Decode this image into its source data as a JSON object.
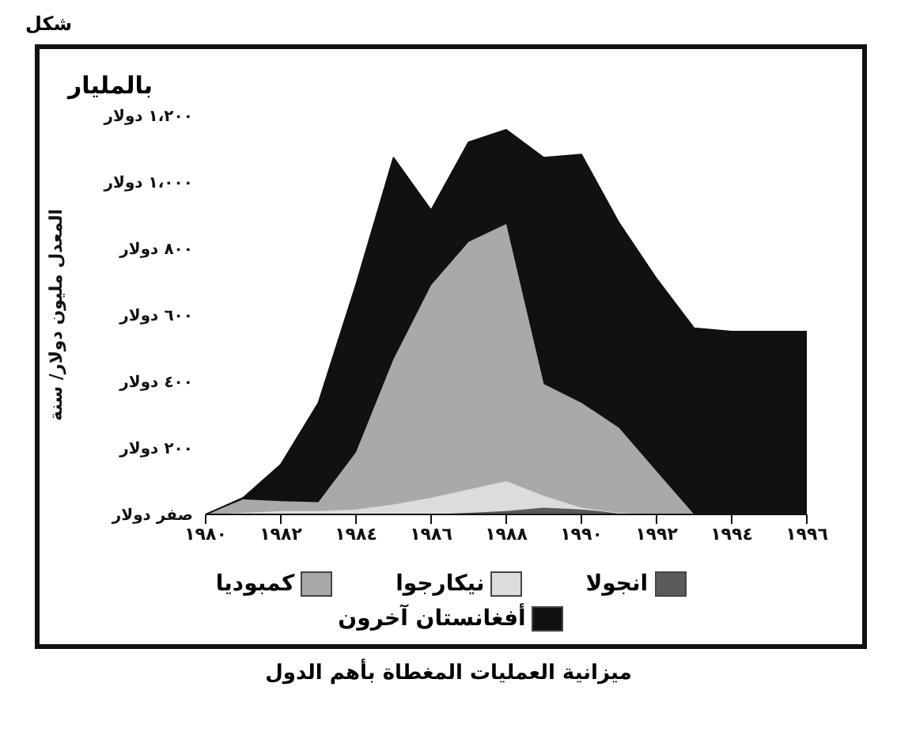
{
  "chart_data": {
    "type": "area",
    "stacked": true,
    "title": "ميزانية العمليات المغطاة بأهم الدول",
    "ylabel": "المعدل مليون دولار/ سنة",
    "annotations": [
      "شكل",
      "بالمليار"
    ],
    "x": [
      1980,
      1981,
      1982,
      1983,
      1984,
      1985,
      1986,
      1987,
      1988,
      1989,
      1990,
      1991,
      1992,
      1993,
      1994,
      1995,
      1996
    ],
    "series": [
      {
        "name": "انجولا",
        "color": "#5a5a5a",
        "values": [
          0,
          0,
          0,
          0,
          0,
          0,
          0,
          5,
          10,
          20,
          15,
          5,
          0,
          0,
          0,
          0,
          0
        ]
      },
      {
        "name": "نيكارجوا",
        "color": "#dcdcdc",
        "values": [
          0,
          5,
          10,
          10,
          15,
          30,
          50,
          70,
          90,
          36,
          5,
          0,
          0,
          0,
          0,
          0,
          0
        ]
      },
      {
        "name": "كمبوديا",
        "color": "#a9a9a9",
        "values": [
          0,
          40,
          30,
          27,
          172,
          437,
          640,
          745,
          774,
          336,
          316,
          256,
          130,
          0,
          0,
          0,
          0
        ]
      },
      {
        "name": "أفغانستان آخرون",
        "color": "#111111",
        "values": [
          0,
          5,
          110,
          298,
          503,
          606,
          225,
          300,
          283,
          681,
          747,
          616,
          579,
          560,
          550,
          550,
          550
        ]
      }
    ],
    "xlim": [
      1980,
      1996
    ],
    "xticks": [
      {
        "value": 1980,
        "label": "١٩٨٠"
      },
      {
        "value": 1982,
        "label": "١٩٨٢"
      },
      {
        "value": 1984,
        "label": "١٩٨٤"
      },
      {
        "value": 1986,
        "label": "١٩٨٦"
      },
      {
        "value": 1988,
        "label": "١٩٨٨"
      },
      {
        "value": 1990,
        "label": "١٩٩٠"
      },
      {
        "value": 1992,
        "label": "١٩٩٢"
      },
      {
        "value": 1994,
        "label": "١٩٩٤"
      },
      {
        "value": 1996,
        "label": "١٩٩٦"
      }
    ],
    "ylim": [
      0,
      1200
    ],
    "yticks": [
      {
        "value": 0,
        "label": "صفر دولار"
      },
      {
        "value": 200,
        "label": "٢٠٠ دولار"
      },
      {
        "value": 400,
        "label": "٤٠٠ دولار"
      },
      {
        "value": 600,
        "label": "٦٠٠ دولار"
      },
      {
        "value": 800,
        "label": "٨٠٠ دولار"
      },
      {
        "value": 1000,
        "label": "١،٠٠٠ دولار"
      },
      {
        "value": 1200,
        "label": "١،٢٠٠ دولار"
      }
    ],
    "grid": false,
    "legend": "bottom"
  }
}
